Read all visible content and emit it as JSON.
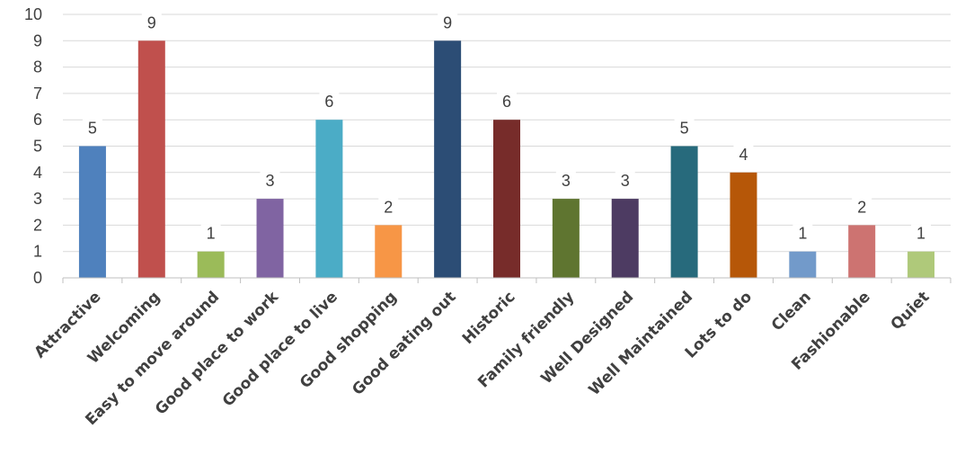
{
  "chart_data": {
    "type": "bar",
    "title": "",
    "xlabel": "",
    "ylabel": "",
    "ylim": [
      0,
      10
    ],
    "yticks": [
      0,
      1,
      2,
      3,
      4,
      5,
      6,
      7,
      8,
      9,
      10
    ],
    "grid": true,
    "legend": "none",
    "categories": [
      "Attractive",
      "Welcoming",
      "Easy to move around",
      "Good place to work",
      "Good place to live",
      "Good shopping",
      "Good eating out",
      "Historic",
      "Family friendly",
      "Well Designed",
      "Well Maintained",
      "Lots to do",
      "Clean",
      "Fashionable",
      "Quiet"
    ],
    "values": [
      5,
      9,
      1,
      3,
      6,
      2,
      9,
      6,
      3,
      3,
      5,
      4,
      1,
      2,
      1
    ],
    "colors": [
      "#4f81bd",
      "#c0504d",
      "#9bbb59",
      "#8064a2",
      "#4bacc6",
      "#f79646",
      "#2c4d75",
      "#772c2a",
      "#5f7530",
      "#4d3b62",
      "#276a7c",
      "#b65708",
      "#729aca",
      "#cd7371",
      "#afc97a"
    ]
  }
}
